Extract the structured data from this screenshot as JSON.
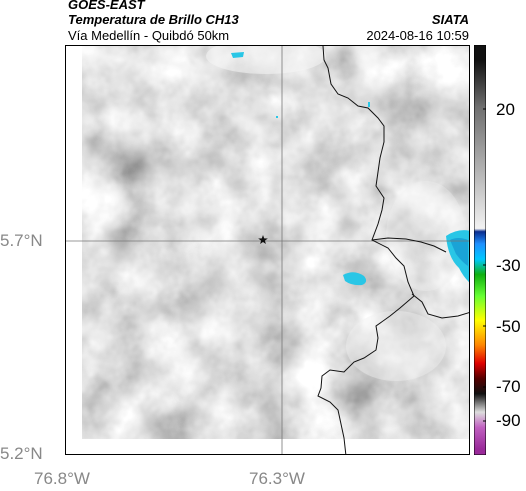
{
  "header": {
    "satellite": "GOES-EAST",
    "product": "Temperatura de Brillo CH13",
    "route": "Vía Medellín - Quibdó 50km",
    "organization": "SIATA",
    "timestamp": "2024-08-16 10:59"
  },
  "map": {
    "latitude_labels": [
      "5.7°N",
      "5.2°N"
    ],
    "longitude_labels": [
      "76.8°W",
      "76.3°W"
    ],
    "marker": "star",
    "colors": {
      "background_gray_light": "#c8c8c8",
      "background_gray_dark": "#8c8c8c",
      "cold_cloud": "#29c6e6",
      "coastline": "#111111"
    }
  },
  "colorbar": {
    "tick_labels": [
      "20",
      "-30",
      "-50",
      "-70",
      "-90"
    ],
    "stops": [
      {
        "temp": 35,
        "color": "#111111"
      },
      {
        "temp": 20,
        "color": "#6e6e6e"
      },
      {
        "temp": -20,
        "color": "#f2f2f2"
      },
      {
        "temp": -21,
        "color": "#0b2d8f"
      },
      {
        "temp": -25,
        "color": "#1e90ff"
      },
      {
        "temp": -30,
        "color": "#00c8ff"
      },
      {
        "temp": -35,
        "color": "#10b010"
      },
      {
        "temp": -42,
        "color": "#66ff33"
      },
      {
        "temp": -50,
        "color": "#ffff00"
      },
      {
        "temp": -58,
        "color": "#ff8800"
      },
      {
        "temp": -64,
        "color": "#e00000"
      },
      {
        "temp": -69,
        "color": "#550000"
      },
      {
        "temp": -74,
        "color": "#111111"
      },
      {
        "temp": -80,
        "color": "#dddddd"
      },
      {
        "temp": -85,
        "color": "#c060c0"
      },
      {
        "temp": -92,
        "color": "#9a2a9a"
      }
    ]
  }
}
